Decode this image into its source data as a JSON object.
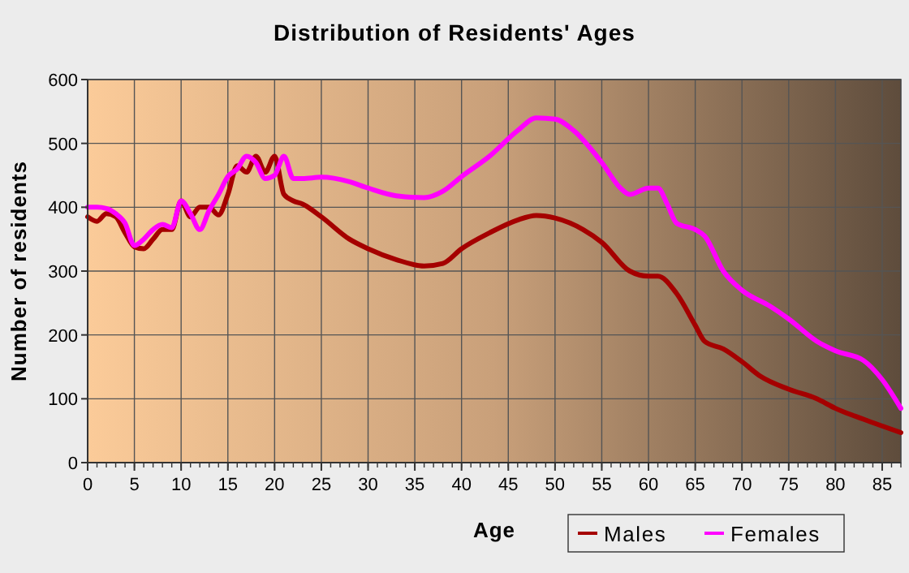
{
  "chart_data": {
    "type": "line",
    "title": "Distribution of Residents' Ages",
    "xlabel": "Age",
    "ylabel": "Number of residents",
    "xlim": [
      0,
      87
    ],
    "xticks": [
      0,
      5,
      10,
      15,
      20,
      25,
      30,
      35,
      40,
      45,
      50,
      55,
      60,
      65,
      70,
      75,
      80,
      85
    ],
    "ylim": [
      0,
      600
    ],
    "yticks": [
      0,
      100,
      200,
      300,
      400,
      500,
      600
    ],
    "grid": true,
    "legend": "bottom right",
    "marker": "none",
    "line_style": "solid",
    "series": [
      {
        "name": "Males",
        "color": "#a50000",
        "x": [
          0,
          1,
          2,
          3,
          4,
          5,
          6,
          7,
          8,
          9,
          10,
          11,
          12,
          13,
          14,
          15,
          16,
          17,
          18,
          19,
          20,
          21,
          22,
          23,
          25,
          28,
          30,
          33,
          36,
          38,
          40,
          43,
          46,
          48,
          50,
          53,
          55,
          58,
          60,
          61,
          63,
          65,
          66,
          68,
          70,
          72,
          75,
          78,
          80,
          83,
          87
        ],
        "values": [
          385,
          378,
          390,
          385,
          360,
          338,
          335,
          350,
          365,
          365,
          410,
          385,
          400,
          400,
          388,
          420,
          465,
          455,
          480,
          455,
          480,
          420,
          410,
          405,
          385,
          350,
          335,
          318,
          308,
          312,
          335,
          360,
          380,
          387,
          383,
          365,
          345,
          300,
          292,
          292,
          265,
          215,
          190,
          178,
          158,
          135,
          115,
          100,
          85,
          68,
          47
        ]
      },
      {
        "name": "Females",
        "color": "#ff00ff",
        "x": [
          0,
          1,
          2,
          3,
          4,
          5,
          6,
          7,
          8,
          9,
          10,
          11,
          12,
          13,
          14,
          15,
          16,
          17,
          18,
          19,
          20,
          21,
          22,
          23,
          25,
          28,
          30,
          33,
          36,
          38,
          40,
          43,
          46,
          48,
          50,
          52,
          55,
          57,
          58,
          60,
          61,
          62,
          63,
          65,
          66,
          68,
          70,
          73,
          75,
          78,
          80,
          83,
          85,
          87
        ],
        "values": [
          400,
          400,
          398,
          390,
          375,
          340,
          350,
          365,
          373,
          368,
          410,
          390,
          365,
          395,
          420,
          448,
          460,
          480,
          470,
          445,
          450,
          480,
          445,
          445,
          447,
          440,
          430,
          418,
          415,
          425,
          448,
          480,
          520,
          540,
          538,
          520,
          470,
          430,
          420,
          430,
          430,
          405,
          375,
          365,
          355,
          300,
          270,
          245,
          225,
          190,
          175,
          160,
          130,
          85
        ]
      }
    ]
  }
}
